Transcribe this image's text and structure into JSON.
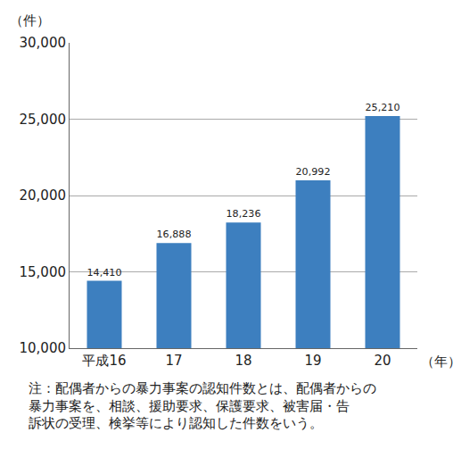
{
  "chart_data": {
    "type": "bar",
    "categories": [
      "平成16",
      "17",
      "18",
      "19",
      "20"
    ],
    "values": [
      14410,
      16888,
      18236,
      20992,
      25210
    ],
    "value_labels": [
      "14,410",
      "16,888",
      "18,236",
      "20,992",
      "25,210"
    ],
    "data_labels": true,
    "color": "#3d7fbf",
    "ylabel": "（件）",
    "xlabel": "（年）",
    "ylim": [
      10000,
      30000
    ],
    "yticks": [
      {
        "value": 10000,
        "label": "10,000"
      },
      {
        "value": 15000,
        "label": "15,000"
      },
      {
        "value": 20000,
        "label": "20,000"
      },
      {
        "value": 25000,
        "label": "25,000"
      },
      {
        "value": 30000,
        "label": "30,000"
      }
    ],
    "grid": true,
    "note": [
      "注：配偶者からの暴力事案の認知件数とは、配偶者からの",
      "暴力事案を、相談、援助要求、保護要求、被害届・告",
      "訴状の受理、検挙等により認知した件数をいう。"
    ]
  }
}
